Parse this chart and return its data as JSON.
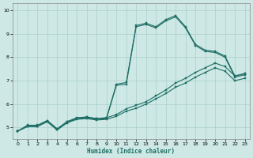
{
  "xlabel": "Humidex (Indice chaleur)",
  "bg_color": "#cde8e5",
  "line_color": "#1e6e65",
  "grid_color": "#aacfcc",
  "xlim": [
    -0.5,
    23.5
  ],
  "ylim": [
    4.5,
    10.3
  ],
  "xticks": [
    0,
    1,
    2,
    3,
    4,
    5,
    6,
    7,
    8,
    9,
    10,
    11,
    12,
    13,
    14,
    15,
    16,
    17,
    18,
    19,
    20,
    21,
    22,
    23
  ],
  "yticks": [
    5,
    6,
    7,
    8,
    9,
    10
  ],
  "line1_x": [
    0,
    1,
    2,
    3,
    4,
    5,
    6,
    7,
    8,
    9,
    10,
    11,
    12,
    13,
    14,
    15,
    16,
    17,
    18,
    19,
    20,
    21,
    22,
    23
  ],
  "line1_y": [
    4.85,
    5.1,
    5.1,
    5.3,
    4.95,
    5.25,
    5.4,
    5.45,
    5.38,
    5.42,
    5.55,
    5.8,
    5.95,
    6.1,
    6.35,
    6.6,
    6.9,
    7.1,
    7.35,
    7.55,
    7.75,
    7.6,
    7.2,
    7.3
  ],
  "line2_x": [
    0,
    1,
    2,
    3,
    4,
    5,
    6,
    7,
    8,
    9,
    10,
    11,
    12,
    13,
    14,
    15,
    16,
    17,
    18,
    19,
    20,
    21,
    22,
    23
  ],
  "line2_y": [
    4.85,
    5.05,
    5.05,
    5.25,
    4.9,
    5.2,
    5.35,
    5.38,
    5.32,
    5.35,
    5.48,
    5.7,
    5.82,
    6.0,
    6.22,
    6.45,
    6.72,
    6.9,
    7.15,
    7.35,
    7.55,
    7.4,
    7.0,
    7.1
  ],
  "line3_x": [
    0,
    1,
    2,
    3,
    4,
    5,
    6,
    7,
    8,
    9,
    10,
    11,
    12,
    13,
    14,
    15,
    16,
    17,
    18,
    19,
    20,
    21,
    22,
    23
  ],
  "line3_y": [
    4.85,
    5.05,
    5.05,
    5.25,
    4.9,
    5.22,
    5.38,
    5.42,
    5.35,
    5.38,
    6.8,
    6.85,
    9.3,
    9.4,
    9.25,
    9.55,
    9.72,
    9.25,
    8.5,
    8.25,
    8.2,
    8.0,
    7.15,
    7.25
  ],
  "line4_x": [
    0,
    1,
    2,
    3,
    4,
    5,
    6,
    7,
    8,
    9,
    10,
    11,
    12,
    13,
    14,
    15,
    16,
    17,
    18,
    19,
    20,
    21,
    22,
    23
  ],
  "line4_y": [
    4.85,
    5.05,
    5.05,
    5.28,
    4.92,
    5.25,
    5.42,
    5.45,
    5.38,
    5.42,
    6.85,
    6.92,
    9.35,
    9.45,
    9.3,
    9.6,
    9.78,
    9.3,
    8.55,
    8.3,
    8.25,
    8.05,
    7.2,
    7.3
  ]
}
